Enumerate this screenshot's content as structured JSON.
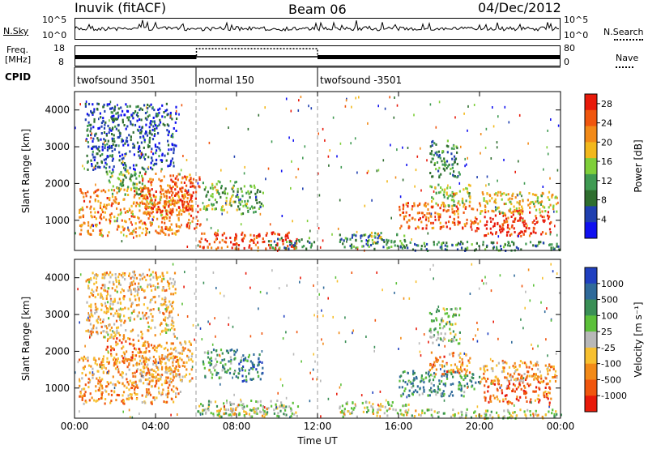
{
  "header": {
    "station": "Inuvik (fitACF)",
    "beam": "Beam 06",
    "date": "04/Dec/2012"
  },
  "panels": {
    "nsky": {
      "left_label": "N.Sky",
      "right_label": "N.Search",
      "left_ticks": [
        "10^5",
        "10^0"
      ],
      "right_ticks": [
        "10^5",
        "10^0"
      ]
    },
    "freq": {
      "label_line1": "Freq.",
      "label_line2": "[MHz]",
      "right_label": "Nave",
      "left_ticks": [
        "18",
        "8"
      ],
      "right_ticks": [
        "80",
        "0"
      ]
    },
    "cpid": {
      "label": "CPID",
      "segments": [
        {
          "name": "twofsound 3501",
          "start_hour": 0,
          "end_hour": 6
        },
        {
          "name": "normal 150",
          "start_hour": 6,
          "end_hour": 12
        },
        {
          "name": "twofsound -3501",
          "start_hour": 12,
          "end_hour": 24
        }
      ]
    }
  },
  "colors": {
    "power": [
      "#1010f0",
      "#2040b0",
      "#2f6e2f",
      "#3f9a52",
      "#7fcf3a",
      "#f2b81c",
      "#f28a18",
      "#f0560e",
      "#e81a0a"
    ],
    "velocity": [
      "#2040c0",
      "#2f6a9a",
      "#3a8f56",
      "#5cc03a",
      "#b8b8b8",
      "#f7c030",
      "#f28a18",
      "#f0560e",
      "#e81a0a"
    ]
  },
  "chart_data": [
    {
      "type": "heatmap",
      "title": "",
      "ylabel": "Slant Range [km]",
      "xlabel": "",
      "xlim": [
        0,
        24
      ],
      "ylim": [
        180,
        4500
      ],
      "x_ticks": [
        "00:00",
        "04:00",
        "08:00",
        "12:00",
        "16:00",
        "20:00",
        "00:00"
      ],
      "y_ticks": [
        1000,
        2000,
        3000,
        4000
      ],
      "colorbar": {
        "label": "Power [dB]",
        "ticks": [
          4,
          8,
          12,
          16,
          20,
          24,
          28
        ],
        "range": [
          0,
          30
        ]
      },
      "regions": [
        {
          "t": [
            0.2,
            5.2
          ],
          "r": [
            600,
            1900
          ],
          "level": 0.72
        },
        {
          "t": [
            1.5,
            3.5
          ],
          "r": [
            1700,
            2400
          ],
          "level": 0.45
        },
        {
          "t": [
            3.2,
            5.8
          ],
          "r": [
            1200,
            2300
          ],
          "level": 0.8
        },
        {
          "t": [
            5.2,
            6.2
          ],
          "r": [
            800,
            2200
          ],
          "level": 0.85
        },
        {
          "t": [
            6.3,
            8.0
          ],
          "r": [
            1300,
            2100
          ],
          "level": 0.45
        },
        {
          "t": [
            8.0,
            9.3
          ],
          "r": [
            1200,
            2000
          ],
          "level": 0.38
        },
        {
          "t": [
            6.0,
            11.0
          ],
          "r": [
            250,
            700
          ],
          "level": 0.88
        },
        {
          "t": [
            9.5,
            11.8
          ],
          "r": [
            250,
            550
          ],
          "level": 0.3
        },
        {
          "t": [
            13.0,
            16.5
          ],
          "r": [
            250,
            650
          ],
          "level": 0.32
        },
        {
          "t": [
            14.5,
            15.2
          ],
          "r": [
            400,
            700
          ],
          "level": 0.55
        },
        {
          "t": [
            16.0,
            20.0
          ],
          "r": [
            800,
            1500
          ],
          "level": 0.8
        },
        {
          "t": [
            17.5,
            19.5
          ],
          "r": [
            1400,
            2000
          ],
          "level": 0.5
        },
        {
          "t": [
            20.2,
            23.5
          ],
          "r": [
            600,
            1300
          ],
          "level": 0.92
        },
        {
          "t": [
            20.0,
            23.8
          ],
          "r": [
            1200,
            1800
          ],
          "level": 0.6
        },
        {
          "t": [
            16.0,
            24.0
          ],
          "r": [
            200,
            450
          ],
          "level": 0.3
        },
        {
          "t": [
            0.5,
            5.0
          ],
          "r": [
            2400,
            4200
          ],
          "level": 0.2
        },
        {
          "t": [
            17.5,
            19.0
          ],
          "r": [
            2200,
            3200
          ],
          "level": 0.3
        }
      ]
    },
    {
      "type": "heatmap",
      "title": "",
      "ylabel": "Slant Range [km]",
      "xlabel": "Time UT",
      "xlim": [
        0,
        24
      ],
      "ylim": [
        180,
        4500
      ],
      "x_ticks": [
        "00:00",
        "04:00",
        "08:00",
        "12:00",
        "16:00",
        "20:00",
        "00:00"
      ],
      "y_ticks": [
        1000,
        2000,
        3000,
        4000
      ],
      "colorbar": {
        "label": "Velocity [m s⁻¹]",
        "ticks": [
          1000,
          500,
          100,
          25,
          -25,
          -100,
          -500,
          -1000
        ],
        "range": [
          -1000,
          1000
        ]
      },
      "regions": [
        {
          "t": [
            0.2,
            5.2
          ],
          "r": [
            600,
            1900
          ],
          "level": 0.7
        },
        {
          "t": [
            1.5,
            3.5
          ],
          "r": [
            1700,
            2400
          ],
          "level": 0.75
        },
        {
          "t": [
            3.2,
            5.8
          ],
          "r": [
            1200,
            2300
          ],
          "level": 0.65
        },
        {
          "t": [
            6.3,
            8.0
          ],
          "r": [
            1300,
            2100
          ],
          "level": 0.3
        },
        {
          "t": [
            8.0,
            9.3
          ],
          "r": [
            1200,
            2000
          ],
          "level": 0.2
        },
        {
          "t": [
            6.0,
            11.0
          ],
          "r": [
            250,
            700
          ],
          "level": 0.42
        },
        {
          "t": [
            7.0,
            9.5
          ],
          "r": [
            250,
            500
          ],
          "level": 0.55
        },
        {
          "t": [
            13.0,
            16.5
          ],
          "r": [
            250,
            650
          ],
          "level": 0.5
        },
        {
          "t": [
            16.0,
            20.0
          ],
          "r": [
            800,
            1500
          ],
          "level": 0.3
        },
        {
          "t": [
            17.5,
            19.5
          ],
          "r": [
            1400,
            2000
          ],
          "level": 0.72
        },
        {
          "t": [
            20.2,
            23.5
          ],
          "r": [
            600,
            1300
          ],
          "level": 0.8
        },
        {
          "t": [
            20.0,
            23.8
          ],
          "r": [
            1200,
            1800
          ],
          "level": 0.68
        },
        {
          "t": [
            16.0,
            24.0
          ],
          "r": [
            200,
            450
          ],
          "level": 0.5
        },
        {
          "t": [
            0.5,
            5.0
          ],
          "r": [
            2400,
            4200
          ],
          "level": 0.62
        },
        {
          "t": [
            17.5,
            19.0
          ],
          "r": [
            2200,
            3200
          ],
          "level": 0.4
        }
      ]
    }
  ]
}
